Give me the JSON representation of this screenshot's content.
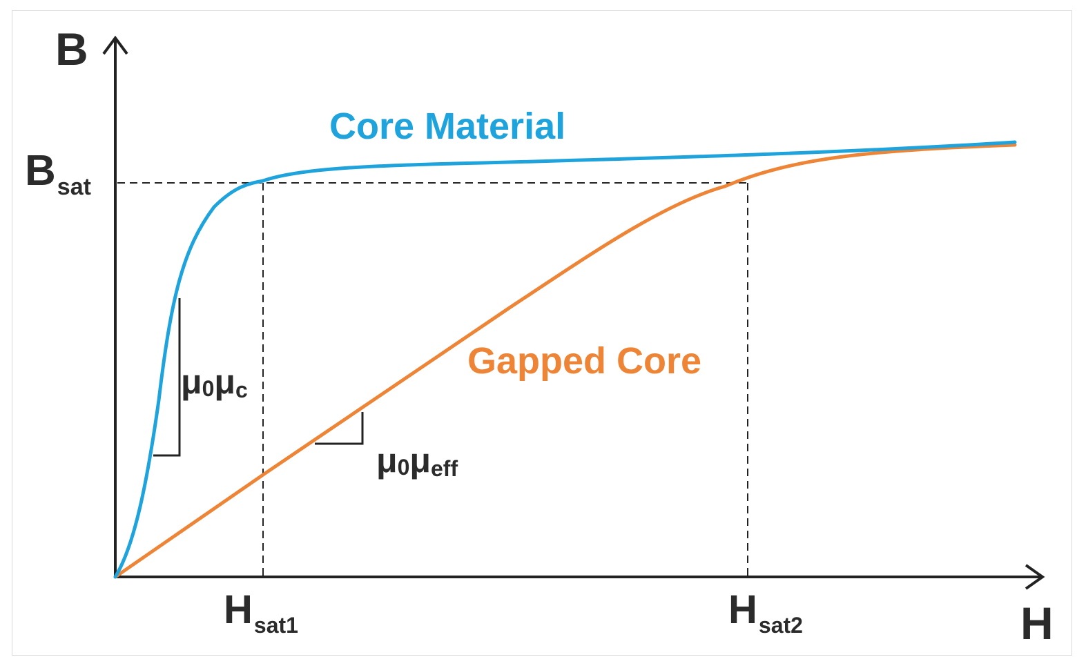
{
  "axes": {
    "y_label": "B",
    "x_label": "H"
  },
  "labels": {
    "bsat_main": "B",
    "bsat_sub": "sat",
    "hsat1_main": "H",
    "hsat1_sub": "sat1",
    "hsat2_main": "H",
    "hsat2_sub": "sat2",
    "mu_c_main": "μ",
    "mu_c_sub0": "0",
    "mu_c_main2": "μ",
    "mu_c_sub": "c",
    "mu_eff_main": "μ",
    "mu_eff_sub0": "0",
    "mu_eff_main2": "μ",
    "mu_eff_sub": "eff"
  },
  "curves": {
    "core_material": {
      "name": "Core Material",
      "color": "#1fa3dc"
    },
    "gapped_core": {
      "name": "Gapped Core",
      "color": "#ee8435"
    }
  },
  "colors": {
    "axis": "#222222",
    "text": "#2b2b2b",
    "guide": "#222222"
  }
}
